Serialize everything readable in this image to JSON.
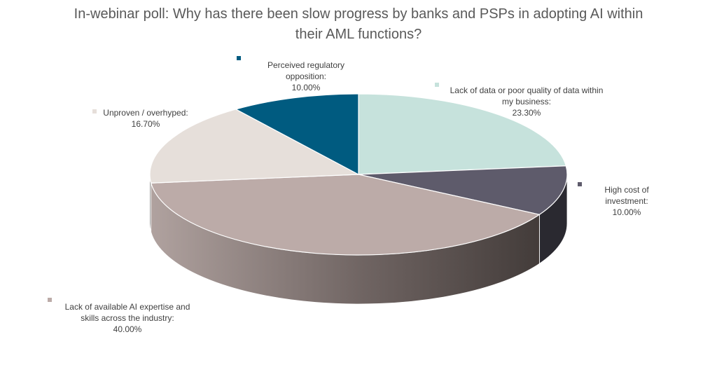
{
  "chart_data": {
    "type": "pie",
    "title": "In-webinar poll: Why has there been slow progress by banks and PSPs in adopting AI within\ntheir AML functions?",
    "slices": [
      {
        "label": "Lack of data or poor quality of data within\nmy business:",
        "value": 23.3,
        "display": "23.30%",
        "color": "#c6e2dc"
      },
      {
        "label": "High cost of\ninvestment:",
        "value": 10.0,
        "display": "10.00%",
        "color": "#5e5b6b"
      },
      {
        "label": "Lack of available AI expertise and\nskills across the industry:",
        "value": 40.0,
        "display": "40.00%",
        "color": "#bcaba8"
      },
      {
        "label": "Unproven / overhyped:",
        "value": 16.7,
        "display": "16.70%",
        "color": "#e6dfda"
      },
      {
        "label": "Perceived regulatory\nopposition:",
        "value": 10.0,
        "display": "10.00%",
        "color": "#005b80"
      }
    ],
    "style": "3d-pie",
    "start": "12 o'clock, clockwise"
  }
}
